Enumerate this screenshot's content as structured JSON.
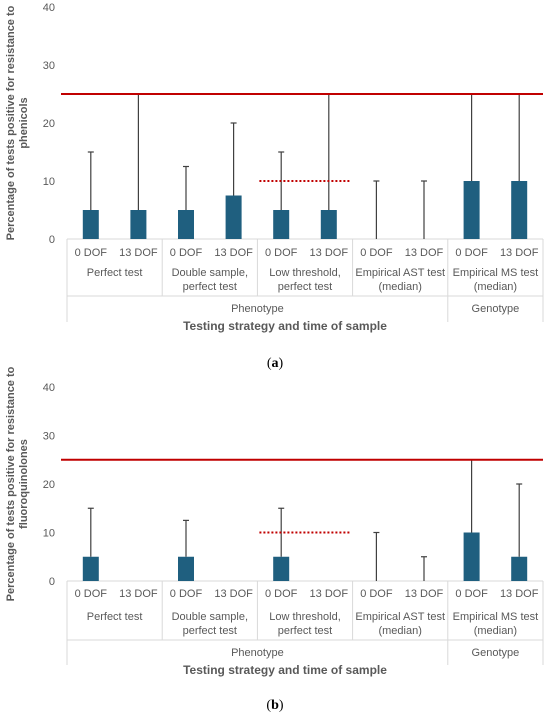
{
  "figure": {
    "captions": [
      "a",
      "b"
    ]
  },
  "chart_data": [
    {
      "type": "bar",
      "title": "",
      "panel": "a",
      "ylabel": "Percentage of tests positive for resistance to phenicols",
      "xlabel": "Testing strategy and time of sample",
      "ylim": [
        0,
        40
      ],
      "yticks": [
        0,
        10,
        20,
        30,
        40
      ],
      "grid": false,
      "groups": [
        {
          "label": "Perfect test",
          "categories": [
            "0 DOF",
            "13 DOF"
          ]
        },
        {
          "label": "Double sample, perfect test",
          "categories": [
            "0 DOF",
            "13 DOF"
          ]
        },
        {
          "label": "Low threshold, perfect test",
          "categories": [
            "0 DOF",
            "13 DOF"
          ]
        },
        {
          "label": "Empirical AST test (median)",
          "categories": [
            "0 DOF",
            "13 DOF"
          ]
        },
        {
          "label": "Empirical MS test (median)",
          "categories": [
            "0 DOF",
            "13 DOF"
          ]
        }
      ],
      "supergroups": [
        {
          "label": "Phenotype",
          "span": [
            0,
            3
          ]
        },
        {
          "label": "Genotype",
          "span": [
            4,
            4
          ]
        }
      ],
      "values": [
        5,
        5,
        5,
        7.5,
        5,
        5,
        0,
        0,
        10,
        10
      ],
      "error_upper": [
        15,
        25,
        12.5,
        20,
        15,
        25,
        10,
        10,
        25,
        25
      ],
      "reference_line": {
        "y": 25,
        "color": "#c00000"
      },
      "threshold_line": {
        "y": 10,
        "group_index": 2,
        "color": "#c00000",
        "style": "dotted"
      },
      "bar_color": "#1f5f7f"
    },
    {
      "type": "bar",
      "title": "",
      "panel": "b",
      "ylabel": "Percentage of tests positive for resistance to fluoroquinolones",
      "xlabel": "Testing strategy and time of sample",
      "ylim": [
        0,
        40
      ],
      "yticks": [
        0,
        10,
        20,
        30,
        40
      ],
      "grid": false,
      "groups": [
        {
          "label": "Perfect test",
          "categories": [
            "0 DOF",
            "13 DOF"
          ]
        },
        {
          "label": "Double sample, perfect test",
          "categories": [
            "0 DOF",
            "13 DOF"
          ]
        },
        {
          "label": "Low threshold, perfect test",
          "categories": [
            "0 DOF",
            "13 DOF"
          ]
        },
        {
          "label": "Empirical AST test (median)",
          "categories": [
            "0 DOF",
            "13 DOF"
          ]
        },
        {
          "label": "Empirical MS test (median)",
          "categories": [
            "0 DOF",
            "13 DOF"
          ]
        }
      ],
      "supergroups": [
        {
          "label": "Phenotype",
          "span": [
            0,
            3
          ]
        },
        {
          "label": "Genotype",
          "span": [
            4,
            4
          ]
        }
      ],
      "values": [
        5,
        0,
        5,
        0,
        5,
        0,
        0,
        0,
        10,
        5
      ],
      "error_upper": [
        15,
        0,
        12.5,
        0,
        15,
        0,
        10,
        5,
        25,
        20
      ],
      "reference_line": {
        "y": 25,
        "color": "#c00000"
      },
      "threshold_line": {
        "y": 10,
        "group_index": 2,
        "color": "#c00000",
        "style": "dotted"
      },
      "bar_color": "#1f5f7f"
    }
  ]
}
